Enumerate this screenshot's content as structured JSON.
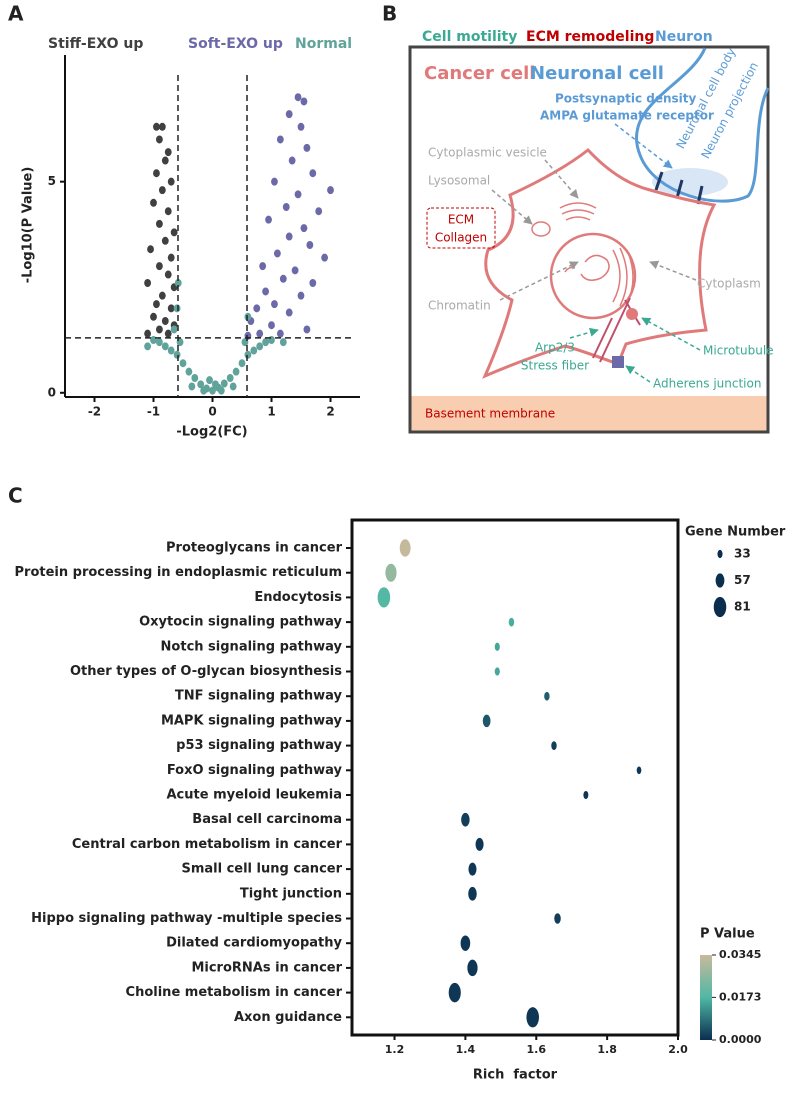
{
  "panel_labels": [
    "A",
    "B",
    "C"
  ],
  "chart_data": [
    {
      "type": "scatter",
      "xlabel": "-Log2(FC)",
      "ylabel": "-Log10(P Value)",
      "xlim": [
        -2.5,
        2.5
      ],
      "ylim": [
        -0.1,
        8
      ],
      "xticks": [
        -2,
        -1,
        0,
        1,
        2
      ],
      "yticks": [
        0,
        5
      ],
      "cutoff_lines": {
        "x": [
          -0.585,
          0.585
        ],
        "y": 1.3
      },
      "series": [
        {
          "name": "Stiff-EXO up",
          "color": "#404040",
          "x": [
            -0.95,
            -0.85,
            -0.9,
            -0.75,
            -0.8,
            -0.95,
            -0.7,
            -0.85,
            -1.0,
            -0.75,
            -0.9,
            -0.65,
            -0.8,
            -1.05,
            -0.7,
            -0.9,
            -0.75,
            -1.1,
            -0.65,
            -0.85,
            -0.95,
            -0.7,
            -1.0,
            -0.8,
            -0.65,
            -0.9,
            -1.1,
            -0.75
          ],
          "y": [
            6.3,
            6.3,
            6.0,
            5.7,
            5.5,
            5.2,
            5.0,
            4.8,
            4.5,
            4.3,
            4.0,
            3.8,
            3.6,
            3.4,
            3.2,
            3.0,
            2.8,
            2.6,
            2.5,
            2.3,
            2.1,
            2.0,
            1.8,
            1.7,
            1.6,
            1.5,
            1.4,
            1.4
          ]
        },
        {
          "name": "Soft-EXO up",
          "color": "#6b69a8",
          "x": [
            1.45,
            1.55,
            1.3,
            1.5,
            1.15,
            1.6,
            1.35,
            2.0,
            1.7,
            1.05,
            1.45,
            1.25,
            1.8,
            0.95,
            1.55,
            1.3,
            1.65,
            1.1,
            1.9,
            0.85,
            1.4,
            1.2,
            1.7,
            0.9,
            1.5,
            1.05,
            0.75,
            1.3,
            0.65,
            1.0,
            1.6,
            0.8,
            1.15,
            0.6
          ],
          "y": [
            7.0,
            6.9,
            6.6,
            6.3,
            6.0,
            5.8,
            5.5,
            4.8,
            5.2,
            5.0,
            4.7,
            4.4,
            4.3,
            4.1,
            3.9,
            3.7,
            3.5,
            3.3,
            3.2,
            3.0,
            2.9,
            2.7,
            2.6,
            2.4,
            2.3,
            2.1,
            2.0,
            1.9,
            1.7,
            1.6,
            1.5,
            1.4,
            1.4,
            1.35
          ]
        },
        {
          "name": "Normal",
          "color": "#5fa39b",
          "x": [
            0,
            -0.1,
            0.1,
            -0.2,
            0.2,
            -0.3,
            0.3,
            -0.4,
            0.4,
            -0.5,
            0.5,
            -0.6,
            0.6,
            -0.7,
            0.7,
            -0.8,
            0.8,
            -0.9,
            0.9,
            -1.0,
            1.0,
            -1.1,
            1.2,
            -0.55,
            0.55,
            -0.65,
            -0.6,
            -0.58,
            0.6,
            -0.05,
            0.05,
            -0.15,
            0.15,
            -0.35,
            0.35
          ],
          "y": [
            0.05,
            0.1,
            0.12,
            0.2,
            0.22,
            0.35,
            0.35,
            0.5,
            0.5,
            0.7,
            0.7,
            0.9,
            0.9,
            1.0,
            1.0,
            1.1,
            1.1,
            1.2,
            1.2,
            1.25,
            1.25,
            1.1,
            1.2,
            1.2,
            1.2,
            1.5,
            2.0,
            2.6,
            1.8,
            0.3,
            0.2,
            0.05,
            0.05,
            0.15,
            0.15
          ]
        }
      ]
    },
    {
      "type": "bubble",
      "xlabel": "Rich  factor",
      "xlim": [
        1.08,
        2.0
      ],
      "xticks": [
        1.2,
        1.4,
        1.6,
        1.8,
        {
          "value": 2,
          "label": "2.0"
        }
      ],
      "categories": [
        "Proteoglycans in cancer",
        "Protein processing in endoplasmic reticulum",
        "Endocytosis",
        "Oxytocin signaling pathway",
        "Notch signaling pathway",
        "Other types of O-glycan biosynthesis",
        "TNF signaling pathway",
        "MAPK signaling pathway",
        "p53 signaling pathway",
        "FoxO signaling pathway",
        "Acute myeloid leukemia",
        "Basal cell carcinoma",
        "Central carbon metabolism in cancer",
        "Small cell lung cancer",
        "Tight junction",
        "Hippo signaling pathway -multiple species",
        "Dilated cardiomyopathy",
        "MicroRNAs in cancer",
        "Choline metabolism in cancer",
        "Axon guidance"
      ],
      "values": [
        1.23,
        1.19,
        1.17,
        1.53,
        1.49,
        1.49,
        1.63,
        1.46,
        1.65,
        1.89,
        1.74,
        1.4,
        1.44,
        1.42,
        1.42,
        1.66,
        1.4,
        1.42,
        1.37,
        1.59
      ],
      "sizes": [
        70,
        72,
        81,
        35,
        33,
        33,
        35,
        50,
        35,
        30,
        32,
        55,
        52,
        52,
        55,
        42,
        62,
        66,
        78,
        81
      ],
      "pvalues": [
        0.034,
        0.027,
        0.018,
        0.016,
        0.015,
        0.015,
        0.006,
        0.005,
        0.002,
        0.001,
        0.001,
        0.002,
        0.001,
        0.001,
        0.001,
        0.002,
        0.001,
        0.001,
        0.001,
        0.001
      ],
      "size_legend": {
        "title": "Gene Number",
        "values": [
          33,
          57,
          81
        ]
      },
      "color_legend": {
        "title": "P Value",
        "range": [
          0,
          0.0345
        ],
        "ticks": [
          {
            "value": 0,
            "label": "0.0000"
          },
          0.0173,
          0.0345
        ],
        "colors": [
          "#0b2e4f",
          "#4fb8a4",
          "#c9b99b"
        ]
      }
    }
  ],
  "diagram": {
    "categories": [
      "Cell motility",
      "ECM remodeling",
      "Neuron"
    ],
    "cells": [
      "Cancer cell",
      "Neuronal cell"
    ],
    "labels": {
      "postsynaptic": "Postsynaptic density",
      "ampa": "AMPA glutamate receptor",
      "cell_body": "Neuronal cell body",
      "projection": "Neuron projection",
      "vesicle": "Cytoplasmic vesicle",
      "lysosomal": "Lysosomal",
      "ecm": "ECM",
      "collagen": "Collagen",
      "chromatin": "Chromatin",
      "cytoplasm": "Cytoplasm",
      "arp": "Arp2/3",
      "stress": "Stress fiber",
      "microtubule": "Microtubule",
      "adherens": "Adherens junction",
      "basement": "Basement membrane"
    }
  }
}
